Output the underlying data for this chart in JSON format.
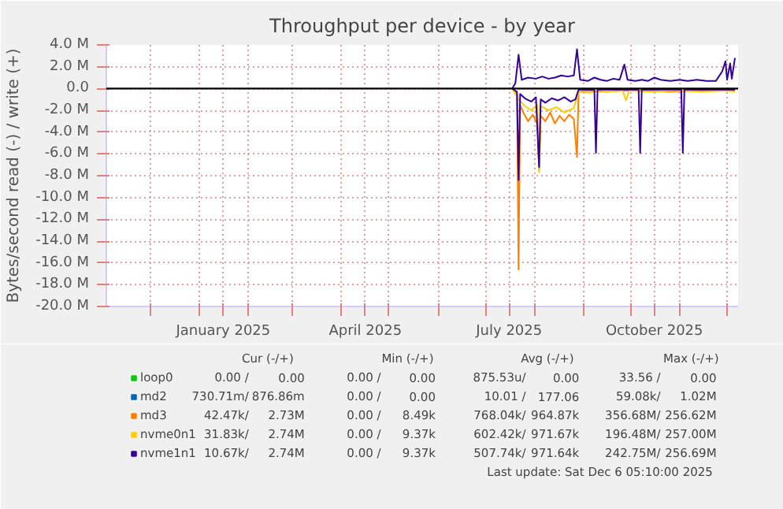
{
  "chart_data": {
    "type": "line",
    "title": "Throughput per device - by year",
    "ylabel": "Bytes/second read (-) / write (+)",
    "xlim": [
      "2024-11-03",
      "2025-12-08"
    ],
    "ylim": [
      -20000000,
      4000000
    ],
    "xticks": [
      {
        "value": "2024-12-01",
        "label": null
      },
      {
        "value": "2025-01-01",
        "label": null
      },
      {
        "value": "2025-01-16",
        "label": "January 2025"
      },
      {
        "value": "2025-02-01",
        "label": null
      },
      {
        "value": "2025-03-01",
        "label": null
      },
      {
        "value": "2025-04-01",
        "label": null
      },
      {
        "value": "2025-04-16",
        "label": "April 2025"
      },
      {
        "value": "2025-05-01",
        "label": null
      },
      {
        "value": "2025-06-01",
        "label": null
      },
      {
        "value": "2025-07-01",
        "label": null
      },
      {
        "value": "2025-07-16",
        "label": "July 2025"
      },
      {
        "value": "2025-08-01",
        "label": null
      },
      {
        "value": "2025-09-01",
        "label": null
      },
      {
        "value": "2025-10-01",
        "label": null
      },
      {
        "value": "2025-10-16",
        "label": "October 2025"
      },
      {
        "value": "2025-11-01",
        "label": null
      },
      {
        "value": "2025-12-01",
        "label": null
      }
    ],
    "yticks": [
      {
        "value": 4000000,
        "label": "4.0 M"
      },
      {
        "value": 2000000,
        "label": "2.0 M"
      },
      {
        "value": 0,
        "label": "0.0"
      },
      {
        "value": -2000000,
        "label": "-2.0 M"
      },
      {
        "value": -4000000,
        "label": "-4.0 M"
      },
      {
        "value": -6000000,
        "label": "-6.0 M"
      },
      {
        "value": -8000000,
        "label": "-8.0 M"
      },
      {
        "value": -10000000,
        "label": "-10.0 M"
      },
      {
        "value": -12000000,
        "label": "-12.0 M"
      },
      {
        "value": -14000000,
        "label": "-14.0 M"
      },
      {
        "value": -16000000,
        "label": "-16.0 M"
      },
      {
        "value": -18000000,
        "label": "-18.0 M"
      },
      {
        "value": -20000000,
        "label": "-20.0 M"
      }
    ],
    "grid": true,
    "legend": "bottom",
    "line_style": "solid",
    "ref_lines": [
      {
        "axis": "y",
        "value": 0,
        "label": null,
        "color": "#000000"
      }
    ],
    "series": [
      {
        "name": "loop0",
        "color": "#00cc00"
      },
      {
        "name": "md2",
        "color": "#0066b3"
      },
      {
        "name": "md3",
        "color": "#ff8000",
        "x": [
          "2025-07-18",
          "2025-07-21",
          "2025-07-22",
          "2025-07-23",
          "2025-07-25",
          "2025-07-28",
          "2025-07-31",
          "2025-08-03",
          "2025-08-04",
          "2025-08-05",
          "2025-08-08",
          "2025-08-11",
          "2025-08-14",
          "2025-08-17",
          "2025-08-20",
          "2025-08-23",
          "2025-08-26",
          "2025-08-28",
          "2025-08-29",
          "2025-09-05",
          "2025-09-15",
          "2025-09-25",
          "2025-10-10",
          "2025-10-25",
          "2025-11-10",
          "2025-11-25",
          "2025-12-06"
        ],
        "values": [
          0,
          -500000,
          -16600000,
          -1500000,
          -2200000,
          -3000000,
          -2400000,
          -3300000,
          -7500000,
          -2500000,
          -3000000,
          -2200000,
          -3200000,
          -2500000,
          -3000000,
          -2400000,
          -2800000,
          -6300000,
          -300000,
          -200000,
          -300000,
          -200000,
          -200000,
          -300000,
          -200000,
          -200000,
          -200000
        ]
      },
      {
        "name": "nvme0n1",
        "color": "#ffcc00",
        "x": [
          "2025-07-18",
          "2025-07-22",
          "2025-07-26",
          "2025-07-30",
          "2025-08-03",
          "2025-08-04",
          "2025-08-05",
          "2025-08-10",
          "2025-08-15",
          "2025-08-20",
          "2025-08-26",
          "2025-08-29",
          "2025-09-05",
          "2025-09-12",
          "2025-09-15",
          "2025-09-26",
          "2025-09-28",
          "2025-09-30",
          "2025-10-15",
          "2025-10-30",
          "2025-11-15",
          "2025-11-30",
          "2025-12-06"
        ],
        "values": [
          0,
          -1000000,
          -1600000,
          -2000000,
          -1500000,
          -7700000,
          -1600000,
          -2000000,
          -1700000,
          -2200000,
          -1800000,
          -300000,
          -400000,
          -200000,
          -300000,
          -200000,
          -1100000,
          -200000,
          -300000,
          -200000,
          -300000,
          -200000,
          -300000
        ]
      },
      {
        "name": "nvme1n1",
        "color": "#330099",
        "x": [
          "2025-07-18",
          "2025-07-21",
          "2025-07-22",
          "2025-07-23",
          "2025-07-26",
          "2025-07-30",
          "2025-08-02",
          "2025-08-04",
          "2025-08-05",
          "2025-08-08",
          "2025-08-12",
          "2025-08-16",
          "2025-08-20",
          "2025-08-24",
          "2025-08-27",
          "2025-08-29",
          "2025-09-08",
          "2025-09-09",
          "2025-09-10",
          "2025-09-20",
          "2025-10-06",
          "2025-10-07",
          "2025-10-08",
          "2025-10-20",
          "2025-11-02",
          "2025-11-03",
          "2025-11-04",
          "2025-11-20",
          "2025-12-06"
        ],
        "values": [
          0,
          -300000,
          -8400000,
          -500000,
          -900000,
          -1200000,
          -800000,
          -7200000,
          -1000000,
          -1300000,
          -900000,
          -1100000,
          -800000,
          -1200000,
          -1000000,
          -100000,
          -100000,
          -5900000,
          -100000,
          -100000,
          -100000,
          -5900000,
          -100000,
          -100000,
          -100000,
          -5900000,
          -100000,
          -100000,
          -100000
        ]
      },
      {
        "color": "#330099",
        "x": [
          "2025-07-18",
          "2025-07-20",
          "2025-07-22",
          "2025-07-24",
          "2025-07-28",
          "2025-08-02",
          "2025-08-06",
          "2025-08-10",
          "2025-08-14",
          "2025-08-18",
          "2025-08-22",
          "2025-08-26",
          "2025-08-28",
          "2025-08-30",
          "2025-09-04",
          "2025-09-08",
          "2025-09-12",
          "2025-09-16",
          "2025-09-20",
          "2025-09-24",
          "2025-09-27",
          "2025-09-29",
          "2025-10-04",
          "2025-10-08",
          "2025-10-12",
          "2025-10-16",
          "2025-10-20",
          "2025-10-26",
          "2025-11-01",
          "2025-11-06",
          "2025-11-12",
          "2025-11-18",
          "2025-11-24",
          "2025-11-28",
          "2025-11-30",
          "2025-12-01",
          "2025-12-03",
          "2025-12-04",
          "2025-12-06"
        ],
        "values": [
          0,
          500000,
          3100000,
          800000,
          1000000,
          900000,
          1100000,
          900000,
          1000000,
          1200000,
          1100000,
          1200000,
          3600000,
          800000,
          700000,
          1000000,
          800000,
          700000,
          900000,
          800000,
          2200000,
          800000,
          700000,
          800000,
          700000,
          1000000,
          800000,
          700000,
          800000,
          700000,
          800000,
          700000,
          700000,
          1600000,
          2500000,
          800000,
          2300000,
          900000,
          2800000
        ]
      }
    ],
    "annotations": [
      "Cur (-/+)",
      "Min (-/+)",
      "Avg (-/+)",
      "Max (-/+)",
      "0.00 /",
      "0.00",
      "0.00 /",
      "0.00",
      "875.53u/",
      "0.00",
      "33.56 /",
      "0.00",
      "730.71m/",
      "876.86m",
      "0.00 /",
      "0.00",
      "10.01 /",
      "177.06",
      "59.08k/",
      "1.02M",
      "42.47k/",
      "2.73M",
      "0.00 /",
      "8.49k",
      "768.04k/",
      "964.87k",
      "356.68M/",
      "256.62M",
      "31.83k/",
      "2.74M",
      "0.00 /",
      "9.37k",
      "602.42k/",
      "971.67k",
      "196.48M/",
      "257.00M",
      "10.67k/",
      "2.74M",
      "0.00 /",
      "9.37k",
      "507.74k/",
      "971.64k",
      "242.75M/",
      "256.69M",
      "Last update: Sat Dec  6 05:10:00 2025"
    ]
  }
}
